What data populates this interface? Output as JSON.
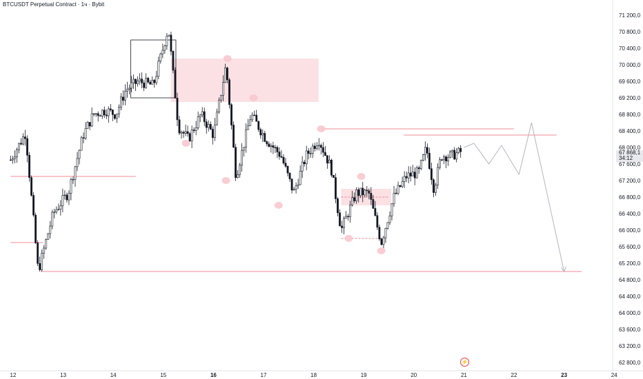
{
  "header": {
    "title": "BTCUSDT Perpetual Contract · 1ч · Bybit"
  },
  "last_price": {
    "value": "67 868,1",
    "countdown": "34:12"
  },
  "colors": {
    "up": "#ffffff",
    "down": "#131722",
    "zone": "#f8c8ce",
    "level": "#f28b96",
    "projection": "#b2b5be",
    "grid": "#f0f3fa"
  },
  "icons": {
    "event_marker": "lightning-icon"
  },
  "chart_data": {
    "type": "candlestick",
    "ylim": [
      62600,
      71400
    ],
    "x_ticks": [
      "12",
      "13",
      "14",
      "15",
      "16",
      "17",
      "18",
      "19",
      "20",
      "21",
      "22",
      "23",
      "24"
    ],
    "y_ticks": [
      "71 200,0",
      "70 800,0",
      "70 400,0",
      "70 000,0",
      "69 600,0",
      "69 200,0",
      "68 800,0",
      "68 400,0",
      "68 000,0",
      "67 600,0",
      "67 200,0",
      "66 800,0",
      "66 400,0",
      "66 000,0",
      "65 600,0",
      "65 200,0",
      "64 800,0",
      "64 400,0",
      "64 000,0",
      "63 600,0",
      "63 200,0",
      "62 800,0"
    ],
    "ohlc_path": [
      [
        "11.95",
        67700
      ],
      [
        "12.25",
        68350
      ],
      [
        "12.5",
        65000
      ],
      [
        "12.8",
        66400
      ],
      [
        "13.1",
        66900
      ],
      [
        "13.4",
        68300
      ],
      [
        "13.6",
        68800
      ],
      [
        "13.85",
        68900
      ],
      [
        "14.05",
        68800
      ],
      [
        "14.25",
        69400
      ],
      [
        "14.5",
        69600
      ],
      [
        "14.8",
        69500
      ],
      [
        "15.1",
        70900
      ],
      [
        "15.3",
        68500
      ],
      [
        "15.5",
        68200
      ],
      [
        "15.75",
        68800
      ],
      [
        "16.0",
        68300
      ],
      [
        "16.25",
        70000
      ],
      [
        "16.45",
        67300
      ],
      [
        "16.75",
        68800
      ],
      [
        "17.05",
        68200
      ],
      [
        "17.35",
        67800
      ],
      [
        "17.6",
        66900
      ],
      [
        "17.85",
        67800
      ],
      [
        "18.1",
        68200
      ],
      [
        "18.35",
        67500
      ],
      [
        "18.55",
        66000
      ],
      [
        "18.85",
        66900
      ],
      [
        "19.1",
        66900
      ],
      [
        "19.35",
        65700
      ],
      [
        "19.6",
        66800
      ],
      [
        "19.85",
        67300
      ],
      [
        "20.1",
        67400
      ],
      [
        "20.25",
        68000
      ],
      [
        "20.4",
        67000
      ],
      [
        "20.55",
        67800
      ],
      [
        "20.75",
        67800
      ],
      [
        "20.95",
        67900
      ]
    ],
    "zones": [
      {
        "from": "15.15",
        "to": "18.1",
        "high": 70150,
        "low": 69100
      },
      {
        "from": "18.55",
        "to": "19.55",
        "high": 67000,
        "low": 66600
      }
    ],
    "levels": [
      {
        "price": 67300,
        "from": "11.95",
        "to": "14.45"
      },
      {
        "price": 65700,
        "from": "11.95",
        "to": "12.6"
      },
      {
        "price": 65000,
        "from": "12.55",
        "to": "23.35"
      },
      {
        "price": 68450,
        "from": "18.15",
        "to": "22.0"
      },
      {
        "price": 68300,
        "from": "19.8",
        "to": "22.85"
      },
      {
        "price": 66800,
        "from": "18.55",
        "to": "19.5"
      },
      {
        "price": 65800,
        "from": "18.55",
        "to": "19.35"
      }
    ],
    "range_box": {
      "from": "14.35",
      "to": "15.25",
      "high": 70600,
      "low": 69200
    },
    "markers": [
      {
        "x": "16.28",
        "price": 70150
      },
      {
        "x": "16.8",
        "price": 69200
      },
      {
        "x": "18.15",
        "price": 68450
      },
      {
        "x": "15.45",
        "price": 68100
      },
      {
        "x": "16.25",
        "price": 67200
      },
      {
        "x": "17.3",
        "price": 66600
      },
      {
        "x": "18.95",
        "price": 67300
      },
      {
        "x": "18.7",
        "price": 65800
      },
      {
        "x": "19.35",
        "price": 65500
      }
    ],
    "projection": [
      [
        "21.0",
        68000
      ],
      [
        "21.2",
        68100
      ],
      [
        "21.5",
        67600
      ],
      [
        "21.75",
        68050
      ],
      [
        "22.1",
        67350
      ],
      [
        "22.35",
        68600
      ],
      [
        "23.0",
        65000
      ]
    ]
  }
}
